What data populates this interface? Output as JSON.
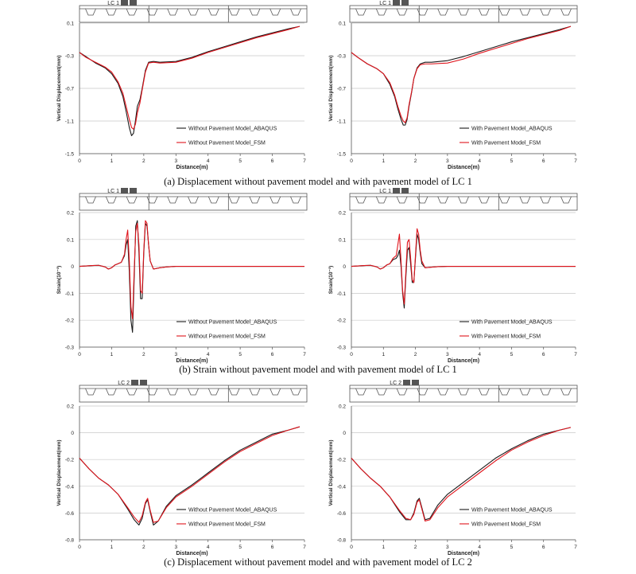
{
  "captions": [
    "(a) Displacement without pavement model and with pavement model of LC 1",
    "(b) Strain without pavement model and with pavement model of LC 1",
    "(c) Displacement without pavement model and with pavement model of LC 2"
  ],
  "colors": {
    "abaqus": "#1a1a1a",
    "fsm": "#e0141c",
    "grid": "#c8c8c8",
    "axis": "#555555",
    "vehicle": "#555555"
  },
  "chart_data": [
    {
      "type": "line",
      "load_case": "LC 1",
      "xlabel": "Distance(m)",
      "ylabel": "Vertical Displacement(mm)",
      "xlim": [
        0,
        7
      ],
      "ylim": [
        -1.5,
        0.1
      ],
      "xticks": [
        0,
        1,
        2,
        3,
        4,
        5,
        6,
        7
      ],
      "yticks": [
        0.1,
        -0.3,
        -0.7,
        -1.1,
        -1.5
      ],
      "ytick_labels": [
        "0.1",
        "-0.3",
        "-0.7",
        "-1.1",
        "-1.5"
      ],
      "legend_position": "bottom-right",
      "grid": true,
      "series": [
        {
          "name": "Without Pavement Model_ABAQUS",
          "color_key": "abaqus",
          "x": [
            0,
            0.2,
            0.5,
            0.8,
            1.0,
            1.2,
            1.35,
            1.45,
            1.55,
            1.62,
            1.68,
            1.74,
            1.8,
            1.88,
            1.95,
            2.05,
            2.15,
            2.3,
            2.5,
            3.0,
            3.5,
            4.0,
            4.5,
            5.0,
            5.5,
            6.0,
            6.5,
            6.85
          ],
          "y": [
            -0.26,
            -0.31,
            -0.39,
            -0.45,
            -0.52,
            -0.64,
            -0.8,
            -0.98,
            -1.18,
            -1.28,
            -1.25,
            -1.1,
            -0.92,
            -0.84,
            -0.7,
            -0.48,
            -0.38,
            -0.37,
            -0.38,
            -0.37,
            -0.32,
            -0.25,
            -0.19,
            -0.13,
            -0.07,
            -0.02,
            0.03,
            0.06
          ]
        },
        {
          "name": "Without Pavement Model_FSM",
          "color_key": "fsm",
          "x": [
            0,
            0.2,
            0.5,
            0.8,
            1.0,
            1.2,
            1.35,
            1.45,
            1.55,
            1.62,
            1.68,
            1.74,
            1.8,
            1.88,
            1.95,
            2.05,
            2.15,
            2.3,
            2.5,
            3.0,
            3.5,
            4.0,
            4.5,
            5.0,
            5.5,
            6.0,
            6.5,
            6.85
          ],
          "y": [
            -0.26,
            -0.32,
            -0.38,
            -0.44,
            -0.5,
            -0.62,
            -0.76,
            -0.92,
            -1.08,
            -1.18,
            -1.2,
            -1.14,
            -1.0,
            -0.88,
            -0.72,
            -0.5,
            -0.39,
            -0.38,
            -0.39,
            -0.38,
            -0.33,
            -0.26,
            -0.2,
            -0.14,
            -0.08,
            -0.03,
            0.02,
            0.06
          ]
        }
      ]
    },
    {
      "type": "line",
      "load_case": "LC 1",
      "xlabel": "Distance(m)",
      "ylabel": "Vertical Displacement(mm)",
      "xlim": [
        0,
        7
      ],
      "ylim": [
        -1.5,
        0.1
      ],
      "xticks": [
        0,
        1,
        2,
        3,
        4,
        5,
        6,
        7
      ],
      "yticks": [
        0.1,
        -0.3,
        -0.7,
        -1.1,
        -1.5
      ],
      "ytick_labels": [
        "0.1",
        "-0.3",
        "-0.7",
        "-1.1",
        "-1.5"
      ],
      "legend_position": "bottom-right",
      "grid": true,
      "series": [
        {
          "name": "With Pavement Model_ABAQUS",
          "color_key": "abaqus",
          "x": [
            0,
            0.2,
            0.5,
            0.8,
            1.0,
            1.2,
            1.35,
            1.45,
            1.55,
            1.62,
            1.68,
            1.74,
            1.8,
            1.88,
            1.95,
            2.05,
            2.15,
            2.3,
            2.5,
            3.0,
            3.5,
            4.0,
            4.5,
            5.0,
            5.5,
            6.0,
            6.5,
            6.85
          ],
          "y": [
            -0.26,
            -0.32,
            -0.4,
            -0.46,
            -0.52,
            -0.65,
            -0.8,
            -0.95,
            -1.08,
            -1.15,
            -1.15,
            -1.08,
            -0.92,
            -0.75,
            -0.58,
            -0.45,
            -0.4,
            -0.38,
            -0.38,
            -0.36,
            -0.31,
            -0.25,
            -0.19,
            -0.13,
            -0.08,
            -0.03,
            0.02,
            0.06
          ]
        },
        {
          "name": "With Pavement Model_FSM",
          "color_key": "fsm",
          "x": [
            0,
            0.2,
            0.5,
            0.8,
            1.0,
            1.2,
            1.35,
            1.45,
            1.55,
            1.62,
            1.68,
            1.74,
            1.8,
            1.88,
            1.95,
            2.05,
            2.15,
            2.3,
            2.5,
            3.0,
            3.5,
            4.0,
            4.5,
            5.0,
            5.5,
            6.0,
            6.5,
            6.85
          ],
          "y": [
            -0.26,
            -0.32,
            -0.4,
            -0.46,
            -0.52,
            -0.63,
            -0.78,
            -0.92,
            -1.04,
            -1.1,
            -1.12,
            -1.06,
            -0.9,
            -0.74,
            -0.58,
            -0.46,
            -0.41,
            -0.4,
            -0.4,
            -0.39,
            -0.34,
            -0.27,
            -0.21,
            -0.15,
            -0.09,
            -0.04,
            0.01,
            0.06
          ]
        }
      ]
    },
    {
      "type": "line",
      "load_case": "LC 1",
      "xlabel": "Distance(m)",
      "ylabel": "Strain(10⁻³)",
      "xlim": [
        0,
        7
      ],
      "ylim": [
        -0.3,
        0.2
      ],
      "xticks": [
        0,
        1,
        2,
        3,
        4,
        5,
        6,
        7
      ],
      "yticks": [
        0.2,
        0.1,
        0,
        -0.1,
        -0.2,
        -0.3
      ],
      "ytick_labels": [
        "0.2",
        "0.1",
        "0",
        "-0.1",
        "-0.2",
        "-0.3"
      ],
      "legend_position": "bottom-right",
      "grid": true,
      "series": [
        {
          "name": "Without Pavement Model_ABAQUS",
          "color_key": "abaqus",
          "x": [
            0,
            0.4,
            0.6,
            0.8,
            0.9,
            1.0,
            1.1,
            1.2,
            1.3,
            1.4,
            1.45,
            1.5,
            1.55,
            1.6,
            1.65,
            1.7,
            1.75,
            1.8,
            1.85,
            1.9,
            1.95,
            2.0,
            2.05,
            2.1,
            2.15,
            2.2,
            2.3,
            2.5,
            2.7,
            3.0,
            7.0
          ],
          "y": [
            0,
            0.003,
            0.004,
            -0.002,
            -0.01,
            -0.005,
            0.005,
            0.01,
            0.015,
            0.04,
            0.08,
            0.1,
            -0.02,
            -0.2,
            -0.245,
            -0.05,
            0.15,
            0.17,
            0.05,
            -0.12,
            -0.12,
            0.05,
            0.16,
            0.15,
            0.08,
            0.02,
            -0.01,
            -0.005,
            -0.002,
            0,
            0
          ]
        },
        {
          "name": "Without Pavement Model_FSM",
          "color_key": "fsm",
          "x": [
            0,
            0.4,
            0.6,
            0.8,
            0.9,
            1.0,
            1.1,
            1.2,
            1.3,
            1.4,
            1.45,
            1.5,
            1.55,
            1.6,
            1.65,
            1.7,
            1.75,
            1.8,
            1.85,
            1.9,
            1.95,
            2.0,
            2.05,
            2.1,
            2.15,
            2.2,
            2.3,
            2.5,
            2.7,
            3.0,
            7.0
          ],
          "y": [
            0,
            0.003,
            0.004,
            -0.002,
            -0.01,
            -0.005,
            0.005,
            0.01,
            0.015,
            0.045,
            0.1,
            0.135,
            0.02,
            -0.15,
            -0.195,
            -0.02,
            0.13,
            0.16,
            0.08,
            -0.09,
            -0.1,
            0.06,
            0.17,
            0.16,
            0.08,
            0.02,
            -0.01,
            -0.005,
            -0.002,
            0,
            0
          ]
        }
      ]
    },
    {
      "type": "line",
      "load_case": "LC 1",
      "xlabel": "Distance(m)",
      "ylabel": "Strain(10⁻³)",
      "xlim": [
        0,
        7
      ],
      "ylim": [
        -0.3,
        0.2
      ],
      "xticks": [
        0,
        1,
        2,
        3,
        4,
        5,
        6,
        7
      ],
      "yticks": [
        0.2,
        0.1,
        0,
        -0.1,
        -0.2,
        -0.3
      ],
      "ytick_labels": [
        "0.2",
        "0.1",
        "0",
        "-0.1",
        "-0.2",
        "-0.3"
      ],
      "legend_position": "bottom-right",
      "grid": true,
      "series": [
        {
          "name": "With Pavement Model_ABAQUS",
          "color_key": "abaqus",
          "x": [
            0,
            0.4,
            0.6,
            0.8,
            0.9,
            1.0,
            1.1,
            1.2,
            1.3,
            1.4,
            1.45,
            1.5,
            1.55,
            1.6,
            1.65,
            1.7,
            1.75,
            1.8,
            1.85,
            1.9,
            1.95,
            2.0,
            2.05,
            2.1,
            2.15,
            2.2,
            2.3,
            2.5,
            2.7,
            3.0,
            7.0
          ],
          "y": [
            0,
            0.003,
            0.004,
            -0.002,
            -0.01,
            -0.005,
            0.005,
            0.01,
            0.025,
            0.03,
            0.04,
            0.06,
            0.0,
            -0.1,
            -0.155,
            -0.04,
            0.06,
            0.07,
            0.01,
            -0.06,
            -0.06,
            0.03,
            0.12,
            0.1,
            0.05,
            0.01,
            -0.005,
            -0.003,
            -0.001,
            0,
            0
          ]
        },
        {
          "name": "With Pavement Model_FSM",
          "color_key": "fsm",
          "x": [
            0,
            0.4,
            0.6,
            0.8,
            0.9,
            1.0,
            1.1,
            1.2,
            1.3,
            1.4,
            1.45,
            1.5,
            1.55,
            1.6,
            1.65,
            1.7,
            1.75,
            1.8,
            1.85,
            1.9,
            1.95,
            2.0,
            2.05,
            2.1,
            2.15,
            2.2,
            2.3,
            2.5,
            2.7,
            3.0,
            7.0
          ],
          "y": [
            0,
            0.003,
            0.004,
            -0.002,
            -0.01,
            -0.005,
            0.005,
            0.01,
            0.03,
            0.04,
            0.08,
            0.12,
            0.02,
            -0.09,
            -0.14,
            -0.02,
            0.09,
            0.1,
            0.03,
            -0.05,
            -0.06,
            0.04,
            0.14,
            0.12,
            0.06,
            0.02,
            -0.005,
            -0.003,
            -0.001,
            0,
            0
          ]
        }
      ]
    },
    {
      "type": "line",
      "load_case": "LC 2",
      "xlabel": "Distance(m)",
      "ylabel": "Vertical Displacement(mm)",
      "xlim": [
        0,
        7
      ],
      "ylim": [
        -0.8,
        0.2
      ],
      "xticks": [
        0,
        1,
        2,
        3,
        4,
        5,
        6,
        7
      ],
      "yticks": [
        0.2,
        0,
        -0.2,
        -0.4,
        -0.6,
        -0.8
      ],
      "ytick_labels": [
        "0.2",
        "0",
        "-0.2",
        "-0.4",
        "-0.6",
        "-0.8"
      ],
      "legend_position": "bottom-right",
      "grid": true,
      "series": [
        {
          "name": "Without Pavement Model_ABAQUS",
          "color_key": "abaqus",
          "x": [
            0,
            0.3,
            0.6,
            0.9,
            1.2,
            1.5,
            1.7,
            1.85,
            1.95,
            2.05,
            2.12,
            2.2,
            2.3,
            2.45,
            2.7,
            3.0,
            3.5,
            4.0,
            4.5,
            5.0,
            5.5,
            6.0,
            6.5,
            6.85
          ],
          "y": [
            -0.19,
            -0.27,
            -0.34,
            -0.39,
            -0.46,
            -0.57,
            -0.65,
            -0.69,
            -0.64,
            -0.53,
            -0.5,
            -0.59,
            -0.69,
            -0.66,
            -0.55,
            -0.47,
            -0.39,
            -0.3,
            -0.21,
            -0.13,
            -0.07,
            -0.01,
            0.02,
            0.045
          ]
        },
        {
          "name": "Without Pavement Model_FSM",
          "color_key": "fsm",
          "x": [
            0,
            0.3,
            0.6,
            0.9,
            1.2,
            1.5,
            1.7,
            1.85,
            1.95,
            2.05,
            2.12,
            2.2,
            2.3,
            2.45,
            2.7,
            3.0,
            3.5,
            4.0,
            4.5,
            5.0,
            5.5,
            6.0,
            6.5,
            6.85
          ],
          "y": [
            -0.19,
            -0.27,
            -0.34,
            -0.39,
            -0.46,
            -0.56,
            -0.63,
            -0.67,
            -0.62,
            -0.52,
            -0.49,
            -0.58,
            -0.67,
            -0.66,
            -0.56,
            -0.48,
            -0.4,
            -0.31,
            -0.22,
            -0.14,
            -0.08,
            -0.02,
            0.02,
            0.045
          ]
        }
      ]
    },
    {
      "type": "line",
      "load_case": "LC 2",
      "xlabel": "Distance(m)",
      "ylabel": "Vertical Displacement(mm)",
      "xlim": [
        0,
        7
      ],
      "ylim": [
        -0.8,
        0.2
      ],
      "xticks": [
        0,
        1,
        2,
        3,
        4,
        5,
        6,
        7
      ],
      "yticks": [
        0.2,
        0,
        -0.2,
        -0.4,
        -0.6,
        -0.8
      ],
      "ytick_labels": [
        "0.2",
        "0",
        "-0.2",
        "-0.4",
        "-0.6",
        "-0.8"
      ],
      "legend_position": "bottom-right",
      "grid": true,
      "series": [
        {
          "name": "With Pavement Model_ABAQUS",
          "color_key": "abaqus",
          "x": [
            0,
            0.3,
            0.6,
            0.9,
            1.2,
            1.5,
            1.7,
            1.85,
            1.95,
            2.05,
            2.12,
            2.2,
            2.3,
            2.45,
            2.7,
            3.0,
            3.5,
            4.0,
            4.5,
            5.0,
            5.5,
            6.0,
            6.5,
            6.85
          ],
          "y": [
            -0.19,
            -0.27,
            -0.34,
            -0.4,
            -0.48,
            -0.59,
            -0.65,
            -0.65,
            -0.6,
            -0.51,
            -0.49,
            -0.56,
            -0.65,
            -0.64,
            -0.54,
            -0.46,
            -0.37,
            -0.28,
            -0.19,
            -0.12,
            -0.06,
            -0.01,
            0.02,
            0.04
          ]
        },
        {
          "name": "With Pavement Model_FSM",
          "color_key": "fsm",
          "x": [
            0,
            0.3,
            0.6,
            0.9,
            1.2,
            1.5,
            1.7,
            1.85,
            1.95,
            2.05,
            2.12,
            2.2,
            2.3,
            2.45,
            2.7,
            3.0,
            3.5,
            4.0,
            4.5,
            5.0,
            5.5,
            6.0,
            6.5,
            6.85
          ],
          "y": [
            -0.19,
            -0.27,
            -0.34,
            -0.4,
            -0.48,
            -0.58,
            -0.64,
            -0.65,
            -0.61,
            -0.52,
            -0.5,
            -0.57,
            -0.66,
            -0.65,
            -0.56,
            -0.48,
            -0.39,
            -0.3,
            -0.21,
            -0.13,
            -0.07,
            -0.02,
            0.02,
            0.04
          ]
        }
      ]
    }
  ]
}
